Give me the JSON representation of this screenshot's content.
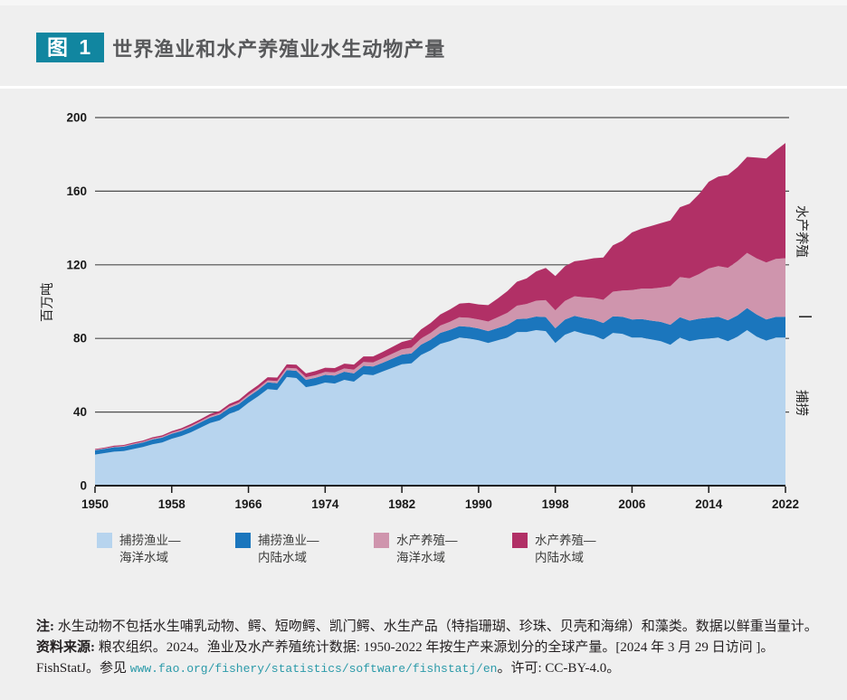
{
  "page": {
    "background": "#efefef",
    "divider_color": "#ffffff"
  },
  "header": {
    "figure_label": "图 1",
    "title": "世界渔业和水产养殖业水生动物产量",
    "accent_color": "#1186a0",
    "title_color": "#58595b"
  },
  "chart_data": {
    "type": "area",
    "stacked": true,
    "title": "世界渔业和水产养殖业水生动物产量",
    "xlabel": "",
    "ylabel": "百万吨",
    "ylim": [
      0,
      200
    ],
    "y_ticks": [
      0,
      40,
      80,
      120,
      160,
      200
    ],
    "x_range": [
      1950,
      2022
    ],
    "x_ticks": [
      1950,
      1958,
      1966,
      1974,
      1982,
      1990,
      1998,
      2006,
      2014,
      2022
    ],
    "grid": "horizontal",
    "legend_position": "bottom",
    "right_labels": [
      "水产养殖",
      "捕捞"
    ],
    "right_separator_value": 91.8,
    "years": [
      1950,
      1951,
      1952,
      1953,
      1954,
      1955,
      1956,
      1957,
      1958,
      1959,
      1960,
      1961,
      1962,
      1963,
      1964,
      1965,
      1966,
      1967,
      1968,
      1969,
      1970,
      1971,
      1972,
      1973,
      1974,
      1975,
      1976,
      1977,
      1978,
      1979,
      1980,
      1981,
      1982,
      1983,
      1984,
      1985,
      1986,
      1987,
      1988,
      1989,
      1990,
      1991,
      1992,
      1993,
      1994,
      1995,
      1996,
      1997,
      1998,
      1999,
      2000,
      2001,
      2002,
      2003,
      2004,
      2005,
      2006,
      2007,
      2008,
      2009,
      2010,
      2011,
      2012,
      2013,
      2014,
      2015,
      2016,
      2017,
      2018,
      2019,
      2020,
      2021,
      2022
    ],
    "series": [
      {
        "name": "捕捞渔业—海洋水域",
        "color": "#b7d4ee",
        "values": [
          16.9,
          17.7,
          18.5,
          18.8,
          19.9,
          21.0,
          22.5,
          23.5,
          25.5,
          27.0,
          29.0,
          31.5,
          34.0,
          35.5,
          39.0,
          41.0,
          45.0,
          48.5,
          52.5,
          52.0,
          59.0,
          58.5,
          53.5,
          54.5,
          56.0,
          55.5,
          57.5,
          56.5,
          60.5,
          60.0,
          62.0,
          64.0,
          66.0,
          66.5,
          71.0,
          73.5,
          77.0,
          78.5,
          80.5,
          80.0,
          79.0,
          77.5,
          79.0,
          80.5,
          83.5,
          83.5,
          84.5,
          84.0,
          77.5,
          82.0,
          84.0,
          82.5,
          81.5,
          79.5,
          83.0,
          82.5,
          80.5,
          80.5,
          79.5,
          78.5,
          76.5,
          80.5,
          78.5,
          79.5,
          80.0,
          80.5,
          78.5,
          81.0,
          84.5,
          81.0,
          78.8,
          80.5,
          80.5
        ]
      },
      {
        "name": "捕捞渔业—内陆水域",
        "color": "#1b76bd",
        "values": [
          2.3,
          2.3,
          2.4,
          2.4,
          2.5,
          2.5,
          2.6,
          2.6,
          2.7,
          2.7,
          2.8,
          2.9,
          3.0,
          3.1,
          3.2,
          3.3,
          3.4,
          3.5,
          3.6,
          3.7,
          3.8,
          3.9,
          4.0,
          4.1,
          4.2,
          4.3,
          4.4,
          4.5,
          4.6,
          4.7,
          4.8,
          5.0,
          5.2,
          5.4,
          5.6,
          5.8,
          6.0,
          6.1,
          6.2,
          6.3,
          6.4,
          6.5,
          6.6,
          6.8,
          7.0,
          7.2,
          7.4,
          7.6,
          8.0,
          8.2,
          8.3,
          8.6,
          8.7,
          8.9,
          9.0,
          9.3,
          9.8,
          10.0,
          10.2,
          10.5,
          10.9,
          11.0,
          11.2,
          11.2,
          11.3,
          11.3,
          11.4,
          11.5,
          12.0,
          12.0,
          11.5,
          11.2,
          11.3
        ]
      },
      {
        "name": "水产养殖—海洋水域",
        "color": "#cf95ad",
        "values": [
          0.3,
          0.3,
          0.3,
          0.4,
          0.4,
          0.4,
          0.5,
          0.5,
          0.6,
          0.6,
          0.7,
          0.7,
          0.8,
          0.8,
          0.9,
          0.9,
          1.0,
          1.0,
          1.1,
          1.2,
          1.2,
          1.3,
          1.4,
          1.5,
          1.6,
          1.7,
          1.8,
          2.0,
          2.1,
          2.3,
          2.5,
          2.7,
          2.9,
          3.1,
          3.4,
          3.7,
          4.0,
          4.4,
          4.8,
          4.9,
          4.9,
          5.2,
          5.9,
          6.6,
          7.3,
          8.0,
          8.6,
          9.2,
          9.8,
          10.2,
          10.6,
          11.2,
          11.8,
          12.6,
          13.4,
          14.2,
          16.0,
          16.6,
          17.4,
          18.6,
          21.0,
          21.8,
          23.0,
          24.3,
          26.7,
          27.5,
          28.5,
          29.5,
          30.0,
          30.5,
          31.0,
          31.5,
          31.8
        ]
      },
      {
        "name": "水产养殖—内陆水域",
        "color": "#b13066",
        "values": [
          0.4,
          0.4,
          0.5,
          0.5,
          0.6,
          0.6,
          0.7,
          0.7,
          0.8,
          0.9,
          1.0,
          1.0,
          1.1,
          1.2,
          1.3,
          1.4,
          1.5,
          1.6,
          1.7,
          1.8,
          1.9,
          2.0,
          2.1,
          2.2,
          2.3,
          2.4,
          2.6,
          2.8,
          3.0,
          3.2,
          3.4,
          3.7,
          4.0,
          4.4,
          4.9,
          5.4,
          6.0,
          6.7,
          7.4,
          8.1,
          8.2,
          8.9,
          10.2,
          11.8,
          13.0,
          13.9,
          15.9,
          17.5,
          18.6,
          18.8,
          19.0,
          20.3,
          21.6,
          23.0,
          25.2,
          27.0,
          31.3,
          32.5,
          34.0,
          35.0,
          35.7,
          38.0,
          40.5,
          43.5,
          47.1,
          48.6,
          50.4,
          51.0,
          52.1,
          54.8,
          56.5,
          59.0,
          62.6
        ]
      }
    ],
    "colors": {
      "grid": "#4d4d4d",
      "axis": "#1a1a1a",
      "tick_label": "#1a1a1a"
    }
  },
  "legend": {
    "items": [
      {
        "line1": "捕捞渔业—",
        "line2": "海洋水域",
        "color": "#b7d4ee"
      },
      {
        "line1": "捕捞渔业—",
        "line2": "内陆水域",
        "color": "#1b76bd"
      },
      {
        "line1": "水产养殖—",
        "line2": "海洋水域",
        "color": "#cf95ad"
      },
      {
        "line1": "水产养殖—",
        "line2": "内陆水域",
        "color": "#b13066"
      }
    ]
  },
  "footnote": {
    "note_label": "注:",
    "note_text": "水生动物不包括水生哺乳动物、鳄、短吻鳄、凯门鳄、水生产品（特指珊瑚、珍珠、贝壳和海绵）和藻类。数据以鲜重当量计。",
    "source_label": "资料来源:",
    "source_text": "粮农组织。2024。渔业及水产养殖统计数据: 1950-2022 年按生产来源划分的全球产量。[2024 年 3 月 29 日访问 ]。",
    "line3_prefix": "FishStatJ。参见 ",
    "url": "www.fao.org/fishery/statistics/software/fishstatj/en",
    "line3_suffix": "。许可: CC-BY-4.0。",
    "url_color": "#2b9aa9"
  }
}
